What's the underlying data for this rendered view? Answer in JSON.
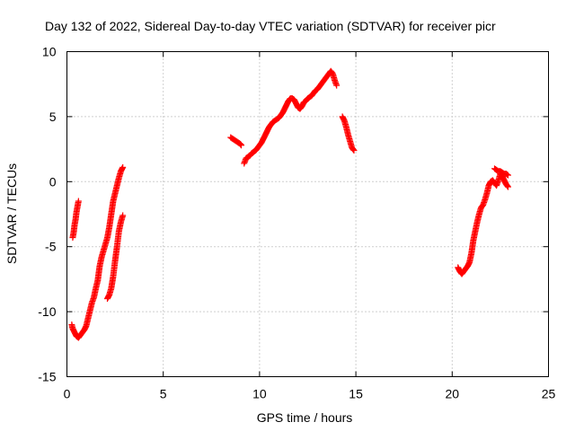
{
  "chart_data": {
    "type": "scatter",
    "title": "Day 132 of 2022, Sidereal Day-to-day VTEC variation (SDTVAR) for receiver picr",
    "xlabel": "GPS time / hours",
    "ylabel": "SDTVAR / TECUs",
    "xlim": [
      0,
      25
    ],
    "ylim": [
      -15,
      10
    ],
    "xticks": [
      "0",
      "5",
      "10",
      "15",
      "20",
      "25"
    ],
    "yticks": [
      "-15",
      "-10",
      "-5",
      "0",
      "5",
      "10"
    ],
    "grid": true,
    "marker": "+",
    "color": "#ff0000",
    "series": [
      {
        "segments": [
          [
            [
              0.25,
              -11.0
            ],
            [
              0.3,
              -11.3
            ],
            [
              0.4,
              -11.6
            ],
            [
              0.5,
              -11.9
            ],
            [
              0.6,
              -12.0
            ],
            [
              0.7,
              -11.8
            ],
            [
              0.8,
              -11.6
            ],
            [
              0.9,
              -11.4
            ],
            [
              1.0,
              -11.1
            ],
            [
              1.1,
              -10.5
            ],
            [
              1.2,
              -9.9
            ],
            [
              1.3,
              -9.3
            ],
            [
              1.4,
              -8.9
            ],
            [
              1.5,
              -8.2
            ],
            [
              1.6,
              -7.6
            ],
            [
              1.7,
              -6.5
            ],
            [
              1.8,
              -5.8
            ],
            [
              1.9,
              -5.3
            ],
            [
              2.0,
              -4.8
            ],
            [
              2.1,
              -4.3
            ],
            [
              2.2,
              -3.5
            ],
            [
              2.3,
              -2.5
            ],
            [
              2.4,
              -1.5
            ],
            [
              2.5,
              -0.9
            ],
            [
              2.6,
              -0.3
            ],
            [
              2.7,
              0.3
            ],
            [
              2.8,
              0.8
            ],
            [
              2.9,
              1.1
            ]
          ],
          [
            [
              0.3,
              -4.3
            ],
            [
              0.35,
              -3.9
            ],
            [
              0.4,
              -3.3
            ],
            [
              0.45,
              -2.9
            ],
            [
              0.5,
              -2.3
            ],
            [
              0.55,
              -1.9
            ],
            [
              0.6,
              -1.5
            ]
          ],
          [
            [
              2.1,
              -9.0
            ],
            [
              2.2,
              -8.7
            ],
            [
              2.3,
              -8.2
            ],
            [
              2.4,
              -7.3
            ],
            [
              2.5,
              -6.1
            ],
            [
              2.6,
              -5.0
            ],
            [
              2.7,
              -3.8
            ],
            [
              2.8,
              -3.1
            ],
            [
              2.9,
              -2.6
            ]
          ],
          [
            [
              8.5,
              3.4
            ],
            [
              8.6,
              3.3
            ],
            [
              8.7,
              3.2
            ],
            [
              8.8,
              3.1
            ],
            [
              8.9,
              3.0
            ],
            [
              9.0,
              2.9
            ],
            [
              9.05,
              2.8
            ]
          ],
          [
            [
              9.2,
              1.4
            ],
            [
              9.3,
              1.8
            ],
            [
              9.4,
              1.9
            ],
            [
              9.5,
              2.0
            ],
            [
              9.6,
              2.2
            ],
            [
              9.7,
              2.3
            ],
            [
              9.8,
              2.4
            ],
            [
              9.9,
              2.6
            ],
            [
              10.0,
              2.8
            ],
            [
              10.1,
              3.0
            ],
            [
              10.2,
              3.3
            ],
            [
              10.3,
              3.6
            ],
            [
              10.4,
              3.9
            ],
            [
              10.5,
              4.2
            ],
            [
              10.6,
              4.4
            ],
            [
              10.7,
              4.6
            ],
            [
              10.8,
              4.7
            ],
            [
              10.9,
              4.8
            ],
            [
              11.0,
              4.9
            ],
            [
              11.1,
              5.1
            ],
            [
              11.2,
              5.3
            ],
            [
              11.3,
              5.6
            ],
            [
              11.4,
              5.9
            ],
            [
              11.5,
              6.2
            ],
            [
              11.6,
              6.4
            ],
            [
              11.7,
              6.4
            ],
            [
              11.8,
              6.3
            ],
            [
              11.9,
              6.0
            ],
            [
              12.0,
              5.7
            ],
            [
              12.1,
              5.6
            ],
            [
              12.2,
              5.8
            ],
            [
              12.3,
              6.1
            ],
            [
              12.4,
              6.2
            ],
            [
              12.5,
              6.4
            ],
            [
              12.6,
              6.5
            ],
            [
              12.7,
              6.6
            ],
            [
              12.8,
              6.8
            ],
            [
              12.9,
              7.0
            ],
            [
              13.0,
              7.1
            ],
            [
              13.1,
              7.3
            ],
            [
              13.2,
              7.5
            ],
            [
              13.3,
              7.7
            ],
            [
              13.4,
              7.9
            ],
            [
              13.5,
              8.1
            ],
            [
              13.6,
              8.3
            ],
            [
              13.7,
              8.5
            ],
            [
              13.8,
              8.3
            ],
            [
              13.9,
              7.8
            ],
            [
              14.0,
              7.4
            ]
          ],
          [
            [
              14.3,
              5.0
            ],
            [
              14.4,
              4.7
            ],
            [
              14.5,
              4.2
            ],
            [
              14.6,
              3.6
            ],
            [
              14.7,
              3.1
            ],
            [
              14.8,
              2.6
            ],
            [
              14.9,
              2.4
            ]
          ],
          [
            [
              20.3,
              -6.6
            ],
            [
              20.4,
              -6.9
            ],
            [
              20.5,
              -7.1
            ],
            [
              20.6,
              -6.9
            ],
            [
              20.7,
              -6.7
            ],
            [
              20.8,
              -6.5
            ],
            [
              20.9,
              -6.2
            ],
            [
              21.0,
              -5.5
            ],
            [
              21.1,
              -4.5
            ],
            [
              21.2,
              -3.8
            ],
            [
              21.3,
              -3.1
            ],
            [
              21.4,
              -2.5
            ],
            [
              21.5,
              -2.0
            ],
            [
              21.6,
              -1.8
            ],
            [
              21.7,
              -1.4
            ],
            [
              21.8,
              -0.9
            ],
            [
              21.9,
              -0.3
            ],
            [
              22.0,
              0.0
            ],
            [
              22.1,
              0.1
            ],
            [
              22.2,
              -0.1
            ],
            [
              22.3,
              -0.3
            ],
            [
              22.4,
              0.1
            ],
            [
              22.5,
              0.6
            ],
            [
              22.6,
              0.4
            ],
            [
              22.7,
              0.1
            ],
            [
              22.8,
              -0.2
            ],
            [
              22.9,
              -0.4
            ]
          ],
          [
            [
              22.2,
              1.0
            ],
            [
              22.3,
              0.9
            ],
            [
              22.4,
              0.8
            ],
            [
              22.5,
              0.8
            ],
            [
              22.6,
              0.7
            ],
            [
              22.7,
              0.6
            ],
            [
              22.8,
              0.6
            ],
            [
              22.9,
              0.5
            ]
          ]
        ]
      }
    ]
  }
}
